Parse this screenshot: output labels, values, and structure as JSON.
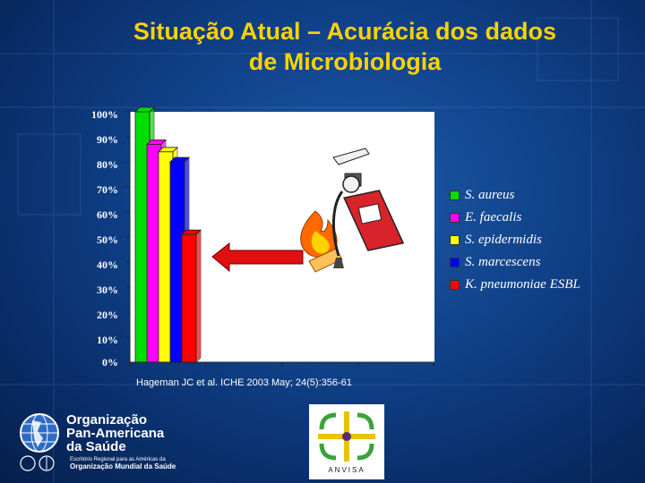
{
  "title": {
    "line1": "Situação Atual – Acurácia dos dados",
    "line2": "de Microbiologia"
  },
  "chart_data": {
    "type": "bar",
    "ylim": [
      0,
      100
    ],
    "yticks": [
      "100%",
      "90%",
      "80%",
      "70%",
      "60%",
      "50%",
      "40%",
      "30%",
      "20%",
      "10%",
      "0%"
    ],
    "series": [
      {
        "name": "S. aureus",
        "value": 100,
        "color": "#00dd00"
      },
      {
        "name": "E. faecalis",
        "value": 87,
        "color": "#ff00ff"
      },
      {
        "name": "S. epidermidis",
        "value": 84,
        "color": "#ffff00"
      },
      {
        "name": "S. marcescens",
        "value": 80,
        "color": "#0000ff"
      },
      {
        "name": "K. pneumoniae ESBL",
        "value": 51,
        "color": "#ff0000"
      }
    ],
    "legend_position": "right",
    "grid": false
  },
  "citation": "Hageman JC et al. ICHE 2003 May; 24(5):356-61",
  "logos": {
    "opas_line1": "Organização",
    "opas_line2": "Pan-Americana",
    "opas_line3": "da Saúde",
    "opas_sub1": "Escritório Regional para as Américas da",
    "opas_sub2": "Organização Mundial da Saúde",
    "anvisa": "ANVISA"
  },
  "icons": [
    "fire-extinguisher-icon",
    "flame-icon",
    "red-arrow-icon",
    "globe-icon"
  ]
}
